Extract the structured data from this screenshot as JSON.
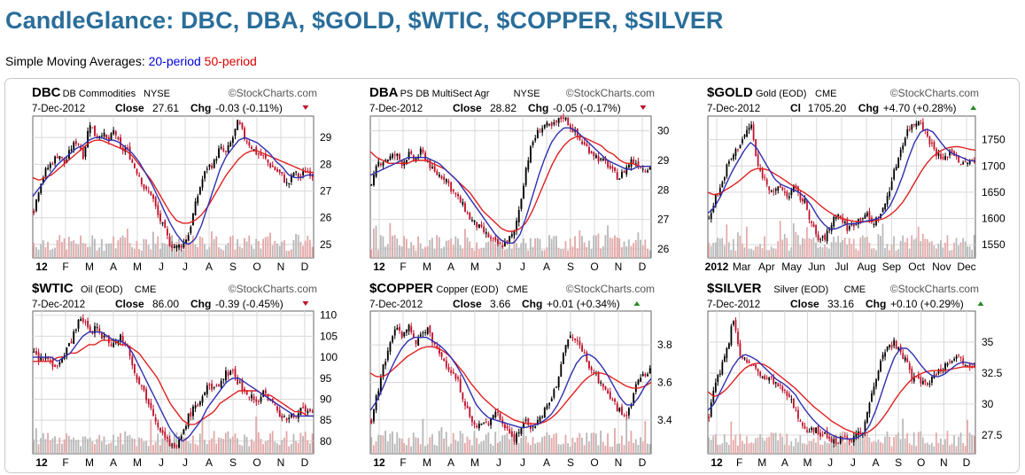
{
  "page": {
    "title": "CandleGlance: DBC, DBA, $GOLD, $WTIC, $COPPER, $SILVER",
    "sma_prefix": "Simple Moving Averages:",
    "sma_20": "20-period",
    "sma_50": "50-period"
  },
  "colors": {
    "title": "#2a6e9a",
    "sma20": "#2f2fb0",
    "sma50": "#e02020",
    "up_candle": "#000000",
    "down_candle": "#c0102a",
    "volume_up": "#b8b8b8",
    "volume_down": "#e4a8a8",
    "grid": "#d8d8d8"
  },
  "chart_data": [
    {
      "type": "candlestick",
      "symbol": "DBC",
      "name": "DB Commodities",
      "exchange": "NYSE",
      "watermark": "©StockCharts.com",
      "date": "7-Dec-2012",
      "close_label": "Close",
      "close": "27.61",
      "chg_label": "Chg",
      "chg": "-0.03 (-0.11%)",
      "direction": "down",
      "xticks": [
        "12",
        "F",
        "M",
        "A",
        "M",
        "J",
        "J",
        "A",
        "S",
        "O",
        "N",
        "D"
      ],
      "yticks": [
        25,
        26,
        27,
        28,
        29
      ],
      "ylim": [
        24.5,
        29.8
      ],
      "close_path": [
        26.3,
        27.3,
        27.8,
        28.1,
        28.4,
        28.0,
        28.6,
        28.9,
        28.3,
        29.6,
        29.0,
        29.2,
        28.8,
        29.3,
        28.5,
        28.6,
        28.0,
        27.6,
        27.0,
        26.9,
        26.1,
        25.6,
        25.0,
        24.9,
        25.0,
        25.4,
        26.4,
        27.3,
        27.9,
        28.0,
        28.6,
        28.4,
        28.9,
        29.6,
        29.0,
        28.7,
        28.4,
        28.3,
        28.0,
        27.8,
        27.6,
        27.2,
        27.7,
        27.5,
        27.8,
        27.61
      ],
      "sma20": [
        26.8,
        27.1,
        27.4,
        27.7,
        28.0,
        28.2,
        28.4,
        28.6,
        28.7,
        28.9,
        29.0,
        29.0,
        28.9,
        28.9,
        28.8,
        28.6,
        28.4,
        28.1,
        27.7,
        27.3,
        26.8,
        26.3,
        25.8,
        25.4,
        25.1,
        25.0,
        25.2,
        25.7,
        26.4,
        27.1,
        27.8,
        28.3,
        28.6,
        28.9,
        29.0,
        28.9,
        28.8,
        28.6,
        28.4,
        28.1,
        27.9,
        27.6,
        27.5,
        27.5,
        27.6,
        27.6
      ],
      "sma50": [
        27.5,
        27.4,
        27.5,
        27.6,
        27.8,
        28.0,
        28.2,
        28.4,
        28.6,
        28.8,
        28.9,
        28.9,
        28.8,
        28.7,
        28.6,
        28.5,
        28.3,
        28.0,
        27.7,
        27.4,
        27.0,
        26.6,
        26.2,
        25.9,
        25.8,
        25.8,
        25.9,
        26.1,
        26.4,
        26.8,
        27.2,
        27.6,
        27.9,
        28.2,
        28.4,
        28.5,
        28.5,
        28.4,
        28.3,
        28.2,
        28.1,
        28.0,
        27.9,
        27.8,
        27.7,
        27.7
      ]
    },
    {
      "type": "candlestick",
      "symbol": "DBA",
      "name": "PS DB MultiSect  Agr",
      "exchange": "NYSE",
      "watermark": "©StockCharts.com",
      "date": "7-Dec-2012",
      "close_label": "Close",
      "close": "28.82",
      "chg_label": "Chg",
      "chg": "-0.05 (-0.17%)",
      "direction": "down",
      "xticks": [
        "12",
        "F",
        "M",
        "A",
        "M",
        "J",
        "J",
        "A",
        "S",
        "O",
        "N",
        "D"
      ],
      "yticks": [
        26,
        27,
        28,
        29,
        30
      ],
      "ylim": [
        25.7,
        30.5
      ],
      "close_path": [
        28.1,
        28.9,
        29.0,
        29.1,
        29.2,
        28.9,
        29.2,
        29.0,
        29.3,
        29.0,
        28.6,
        28.5,
        28.4,
        28.0,
        27.7,
        27.4,
        27.0,
        26.8,
        26.6,
        26.4,
        26.2,
        26.1,
        26.3,
        26.5,
        27.5,
        28.8,
        29.6,
        30.0,
        30.2,
        30.1,
        30.3,
        30.5,
        30.2,
        29.9,
        29.6,
        29.4,
        29.2,
        29.0,
        28.9,
        28.6,
        28.4,
        28.7,
        29.0,
        28.9,
        28.7,
        28.82
      ],
      "sma20": [
        28.5,
        28.6,
        28.7,
        28.8,
        28.9,
        29.0,
        29.1,
        29.1,
        29.1,
        29.1,
        29.0,
        28.9,
        28.7,
        28.5,
        28.3,
        28.0,
        27.7,
        27.4,
        27.1,
        26.8,
        26.5,
        26.3,
        26.2,
        26.2,
        26.5,
        27.1,
        27.8,
        28.5,
        29.1,
        29.6,
        29.9,
        30.1,
        30.1,
        30.0,
        29.8,
        29.6,
        29.4,
        29.2,
        29.0,
        28.9,
        28.8,
        28.7,
        28.7,
        28.8,
        28.8,
        28.8
      ],
      "sma50": [
        29.3,
        29.1,
        29.0,
        28.9,
        28.9,
        28.9,
        28.9,
        29.0,
        29.0,
        29.0,
        28.9,
        28.8,
        28.7,
        28.5,
        28.3,
        28.1,
        27.9,
        27.6,
        27.3,
        27.1,
        26.9,
        26.7,
        26.6,
        26.6,
        26.7,
        26.9,
        27.3,
        27.8,
        28.3,
        28.8,
        29.2,
        29.5,
        29.7,
        29.8,
        29.8,
        29.7,
        29.6,
        29.5,
        29.3,
        29.2,
        29.0,
        28.9,
        28.9,
        28.8,
        28.8,
        28.8
      ]
    },
    {
      "type": "candlestick",
      "symbol": "$GOLD",
      "name": "Gold (EOD)",
      "exchange": "CME",
      "watermark": "©StockCharts.com",
      "date": "7-Dec-2012",
      "close_label": "Cl",
      "close": "1705.20",
      "chg_label": "Chg",
      "chg": "+4.70 (+0.28%)",
      "direction": "up",
      "xticks": [
        "2012",
        "Mar",
        "Apr",
        "May",
        "Jun",
        "Jul",
        "Aug",
        "Sep",
        "Oct",
        "Nov",
        "Dec"
      ],
      "yticks": [
        1550,
        1600,
        1650,
        1700,
        1750
      ],
      "ylim": [
        1525,
        1795
      ],
      "close_path": [
        1600,
        1640,
        1660,
        1700,
        1720,
        1740,
        1760,
        1780,
        1700,
        1680,
        1660,
        1650,
        1660,
        1640,
        1660,
        1640,
        1630,
        1590,
        1560,
        1560,
        1580,
        1610,
        1600,
        1580,
        1590,
        1600,
        1610,
        1590,
        1600,
        1620,
        1660,
        1700,
        1740,
        1770,
        1780,
        1790,
        1760,
        1740,
        1720,
        1710,
        1730,
        1720,
        1700,
        1710,
        1705
      ],
      "sma20": [
        1610,
        1620,
        1640,
        1665,
        1690,
        1710,
        1730,
        1745,
        1735,
        1715,
        1695,
        1675,
        1665,
        1660,
        1655,
        1650,
        1640,
        1625,
        1605,
        1590,
        1580,
        1580,
        1585,
        1590,
        1590,
        1592,
        1595,
        1597,
        1600,
        1610,
        1625,
        1650,
        1680,
        1715,
        1745,
        1765,
        1770,
        1765,
        1750,
        1735,
        1725,
        1720,
        1715,
        1710,
        1710
      ],
      "sma50": [
        1650,
        1645,
        1648,
        1655,
        1662,
        1670,
        1680,
        1690,
        1695,
        1695,
        1692,
        1685,
        1678,
        1670,
        1662,
        1655,
        1648,
        1640,
        1630,
        1620,
        1612,
        1605,
        1600,
        1597,
        1595,
        1594,
        1594,
        1595,
        1597,
        1600,
        1607,
        1617,
        1630,
        1648,
        1668,
        1688,
        1705,
        1718,
        1727,
        1733,
        1736,
        1737,
        1735,
        1732,
        1730
      ]
    },
    {
      "type": "candlestick",
      "symbol": "$WTIC",
      "name": "Oil (EOD)",
      "exchange": "CME",
      "watermark": "©StockCharts.com",
      "date": "7-Dec-2012",
      "close_label": "Close",
      "close": "86.00",
      "chg_label": "Chg",
      "chg": "-0.39 (-0.45%)",
      "direction": "down",
      "xticks": [
        "12",
        "F",
        "M",
        "A",
        "M",
        "J",
        "J",
        "A",
        "S",
        "O",
        "N",
        "D"
      ],
      "yticks": [
        80,
        85,
        90,
        95,
        100,
        105,
        110
      ],
      "ylim": [
        77,
        111
      ],
      "close_path": [
        101,
        99,
        100,
        98,
        99,
        101,
        104,
        108,
        109,
        106,
        107,
        105,
        104,
        103,
        105,
        103,
        98,
        94,
        91,
        88,
        84,
        82,
        79,
        78,
        82,
        86,
        88,
        90,
        93,
        92,
        94,
        96,
        97,
        94,
        92,
        91,
        89,
        92,
        90,
        88,
        86,
        85,
        86,
        88,
        87,
        86
      ],
      "sma20": [
        100,
        100,
        100,
        100,
        99,
        100,
        101,
        103,
        105,
        106,
        106,
        106,
        105,
        104,
        104,
        103,
        101,
        98,
        95,
        92,
        89,
        86,
        83,
        81,
        80,
        81,
        83,
        85,
        88,
        90,
        92,
        94,
        95,
        95,
        94,
        93,
        92,
        91,
        90,
        89,
        88,
        87,
        86,
        86,
        86,
        86
      ],
      "sma50": [
        99,
        99,
        99,
        99,
        100,
        100,
        101,
        101,
        102,
        103,
        103,
        104,
        104,
        104,
        103,
        103,
        102,
        101,
        99,
        97,
        95,
        92,
        89,
        87,
        85,
        84,
        84,
        85,
        86,
        87,
        89,
        90,
        91,
        92,
        92,
        92,
        92,
        91,
        91,
        90,
        89,
        88,
        87,
        87,
        86,
        86
      ]
    },
    {
      "type": "candlestick",
      "symbol": "$COPPER",
      "name": "Copper (EOD)",
      "exchange": "CME",
      "watermark": "©StockCharts.com",
      "date": "7-Dec-2012",
      "close_label": "Close",
      "close": "3.66",
      "chg_label": "Chg",
      "chg": "+0.01 (+0.34%)",
      "direction": "up",
      "xticks": [
        "12",
        "F",
        "M",
        "A",
        "M",
        "J",
        "J",
        "A",
        "S",
        "O",
        "N",
        "D"
      ],
      "yticks": [
        3.4,
        3.6,
        3.8
      ],
      "ylim": [
        3.22,
        3.98
      ],
      "close_path": [
        3.4,
        3.55,
        3.7,
        3.8,
        3.9,
        3.85,
        3.9,
        3.8,
        3.85,
        3.9,
        3.8,
        3.75,
        3.7,
        3.65,
        3.6,
        3.5,
        3.4,
        3.35,
        3.4,
        3.38,
        3.45,
        3.4,
        3.35,
        3.3,
        3.35,
        3.4,
        3.35,
        3.4,
        3.45,
        3.5,
        3.6,
        3.75,
        3.85,
        3.82,
        3.78,
        3.7,
        3.65,
        3.6,
        3.55,
        3.5,
        3.45,
        3.42,
        3.5,
        3.6,
        3.65,
        3.66
      ],
      "sma20": [
        3.45,
        3.5,
        3.57,
        3.65,
        3.72,
        3.78,
        3.82,
        3.84,
        3.84,
        3.84,
        3.82,
        3.8,
        3.77,
        3.73,
        3.68,
        3.62,
        3.55,
        3.48,
        3.44,
        3.41,
        3.4,
        3.39,
        3.38,
        3.37,
        3.36,
        3.36,
        3.37,
        3.38,
        3.4,
        3.43,
        3.48,
        3.55,
        3.63,
        3.7,
        3.74,
        3.75,
        3.73,
        3.69,
        3.64,
        3.58,
        3.52,
        3.48,
        3.48,
        3.52,
        3.58,
        3.62
      ],
      "sma50": [
        3.65,
        3.63,
        3.63,
        3.65,
        3.68,
        3.71,
        3.74,
        3.76,
        3.78,
        3.79,
        3.79,
        3.78,
        3.76,
        3.73,
        3.69,
        3.65,
        3.6,
        3.56,
        3.52,
        3.49,
        3.46,
        3.44,
        3.42,
        3.4,
        3.39,
        3.38,
        3.38,
        3.38,
        3.39,
        3.41,
        3.44,
        3.48,
        3.52,
        3.56,
        3.6,
        3.63,
        3.65,
        3.65,
        3.64,
        3.62,
        3.6,
        3.58,
        3.57,
        3.57,
        3.58,
        3.6
      ]
    },
    {
      "type": "candlestick",
      "symbol": "$SILVER",
      "name": "Silver (EOD)",
      "exchange": "CME",
      "watermark": "©StockCharts.com",
      "date": "7-Dec-2012",
      "close_label": "Close",
      "close": "33.16",
      "chg_label": "Chg",
      "chg": "+0.10 (+0.29%)",
      "direction": "up",
      "xticks": [
        "12",
        "F",
        "M",
        "A",
        "M",
        "J",
        "J",
        "A",
        "S",
        "O",
        "N",
        "D"
      ],
      "yticks": [
        27.5,
        30.0,
        32.5,
        35.0
      ],
      "ylim": [
        26.0,
        37.5
      ],
      "close_path": [
        29.0,
        31.5,
        33.0,
        34.5,
        37.0,
        34.0,
        33.5,
        33.0,
        32.5,
        32.0,
        32.0,
        31.5,
        31.0,
        30.5,
        29.5,
        28.5,
        28.0,
        28.0,
        27.5,
        27.5,
        27.2,
        27.0,
        27.5,
        27.2,
        27.5,
        28.0,
        30.0,
        32.0,
        34.0,
        34.5,
        35.0,
        34.0,
        33.5,
        32.0,
        32.0,
        31.5,
        32.0,
        32.5,
        33.0,
        33.5,
        34.0,
        33.5,
        33.2,
        33.16
      ],
      "sma20": [
        29.5,
        30.0,
        31.0,
        32.0,
        33.0,
        33.7,
        34.0,
        33.8,
        33.5,
        33.0,
        32.5,
        32.0,
        31.7,
        31.3,
        30.8,
        30.0,
        29.3,
        28.7,
        28.2,
        27.8,
        27.5,
        27.3,
        27.2,
        27.2,
        27.3,
        27.6,
        28.3,
        29.5,
        31.0,
        32.5,
        33.8,
        34.5,
        34.5,
        34.0,
        33.3,
        32.7,
        32.3,
        32.2,
        32.4,
        32.8,
        33.2,
        33.4,
        33.3,
        33.2
      ],
      "sma50": [
        31.0,
        30.6,
        30.8,
        31.2,
        31.8,
        32.4,
        32.9,
        33.2,
        33.3,
        33.2,
        32.9,
        32.5,
        32.1,
        31.7,
        31.3,
        30.8,
        30.3,
        29.8,
        29.4,
        29.0,
        28.6,
        28.3,
        28.0,
        27.8,
        27.6,
        27.6,
        27.8,
        28.2,
        28.8,
        29.5,
        30.3,
        31.0,
        31.6,
        32.1,
        32.4,
        32.6,
        32.7,
        32.7,
        32.7,
        32.8,
        32.9,
        33.0,
        33.0,
        33.0
      ]
    }
  ]
}
